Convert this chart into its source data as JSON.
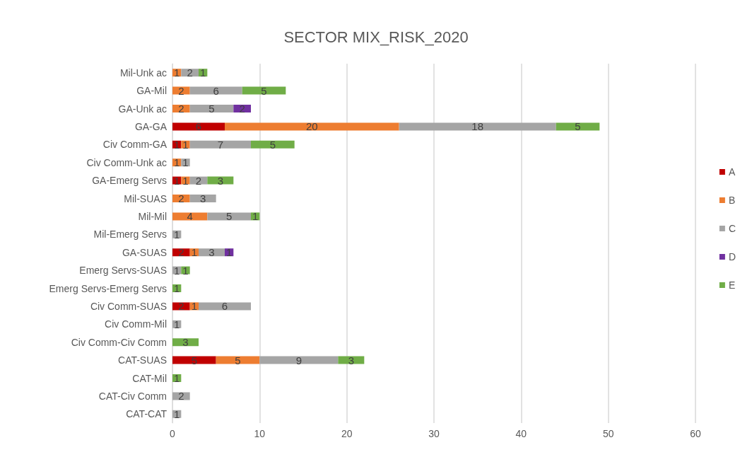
{
  "chart_data": {
    "type": "bar",
    "title": "SECTOR MIX_RISK_2020",
    "orientation": "horizontal",
    "stacked": true,
    "data_labels": true,
    "grid": "x",
    "legend": "right",
    "xlim": [
      0,
      60
    ],
    "xticks": [
      0,
      10,
      20,
      30,
      40,
      50,
      60
    ],
    "categories": [
      "Mil-Unk ac",
      "GA-Mil",
      "GA-Unk ac",
      "GA-GA",
      "Civ Comm-GA",
      "Civ Comm-Unk ac",
      "GA-Emerg Servs",
      "Mil-SUAS",
      "Mil-Mil",
      "Mil-Emerg Servs",
      "GA-SUAS",
      "Emerg Servs-SUAS",
      "Emerg Servs-Emerg Servs",
      "Civ Comm-SUAS",
      "Civ Comm-Mil",
      "Civ Comm-Civ Comm",
      "CAT-SUAS",
      "CAT-Mil",
      "CAT-Civ Comm",
      "CAT-CAT"
    ],
    "series": [
      {
        "name": "A",
        "color": "#c00000",
        "values": [
          null,
          null,
          null,
          6,
          1,
          null,
          1,
          null,
          null,
          null,
          2,
          null,
          null,
          2,
          null,
          null,
          5,
          null,
          null,
          null
        ]
      },
      {
        "name": "B",
        "color": "#ed7d31",
        "values": [
          1,
          2,
          2,
          20,
          1,
          1,
          1,
          2,
          4,
          null,
          1,
          null,
          null,
          1,
          null,
          null,
          5,
          null,
          null,
          null
        ]
      },
      {
        "name": "C",
        "color": "#a5a5a5",
        "values": [
          2,
          6,
          5,
          18,
          7,
          1,
          2,
          3,
          5,
          1,
          3,
          1,
          null,
          6,
          1,
          null,
          9,
          null,
          2,
          1
        ]
      },
      {
        "name": "D",
        "color": "#7030a0",
        "values": [
          null,
          null,
          2,
          null,
          null,
          null,
          null,
          null,
          null,
          null,
          1,
          null,
          null,
          null,
          null,
          null,
          null,
          null,
          null,
          null
        ]
      },
      {
        "name": "E",
        "color": "#70ad47",
        "values": [
          1,
          5,
          null,
          5,
          5,
          null,
          3,
          null,
          1,
          null,
          null,
          1,
          1,
          null,
          null,
          3,
          3,
          1,
          null,
          null
        ]
      }
    ]
  }
}
